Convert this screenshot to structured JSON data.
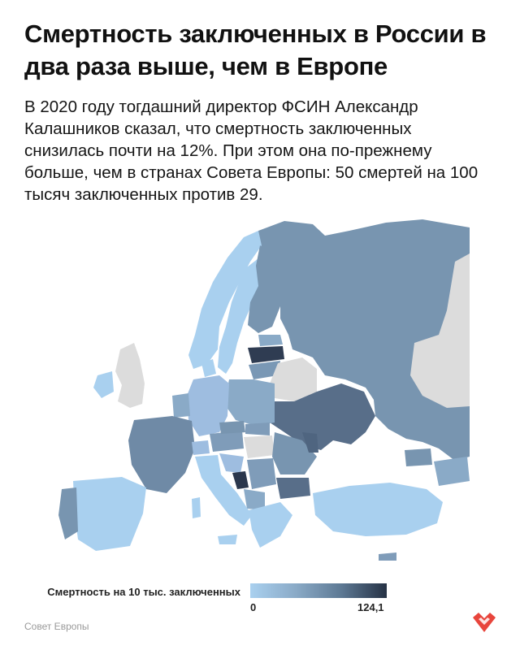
{
  "title": "Смертность заключенных в России в два раза выше, чем в Европе",
  "subtitle": "В 2020 году тогдашний директор ФСИН Александр Калашников сказал, что смертность заключенных снизилась почти на 12%. При этом она по-прежнему больше, чем в странах Совета Европы: 50 смертей на 100 тысяч заключенных против 29.",
  "legend": {
    "label": "Смертность на 10 тыс. заключенных",
    "min": "0",
    "max": "124,1"
  },
  "source": "Совет Европы",
  "colors": {
    "no_data": "#dcdcdc",
    "scale_low": "#a9d0ef",
    "scale_high": "#263245",
    "brand": "#e8453c"
  },
  "logo_icon": "heart-mark-icon"
}
